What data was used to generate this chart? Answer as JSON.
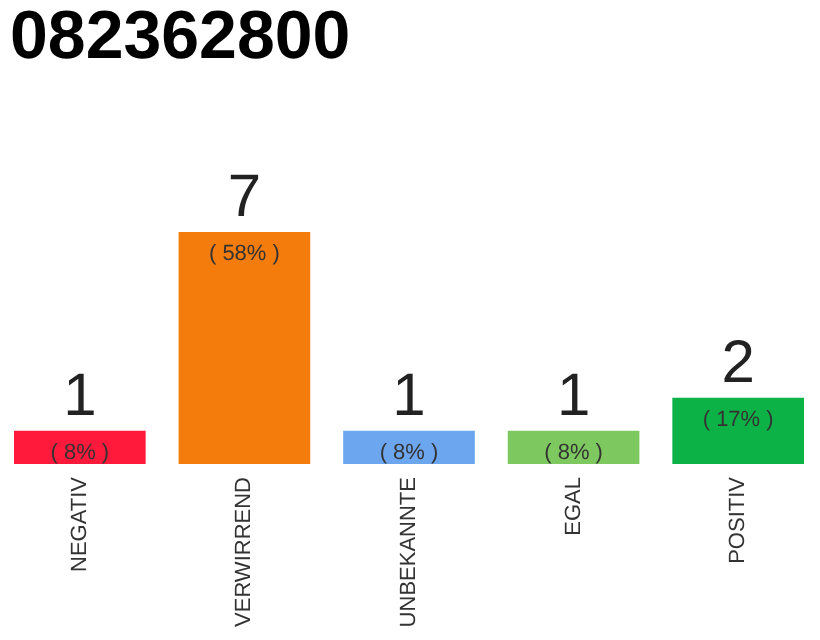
{
  "chart_data": {
    "type": "bar",
    "title": "082362800",
    "categories": [
      "NEGATIV",
      "VERWIRREND",
      "UNBEKANNTE",
      "EGAL",
      "POSITIV"
    ],
    "values": [
      1,
      7,
      1,
      1,
      2
    ],
    "colors": [
      "#ff1a3c",
      "#f47c0c",
      "#6ca6ee",
      "#7ec95f",
      "#0db247"
    ],
    "data_labels": true,
    "annotations": [
      {
        "text": "( 8% )",
        "x": "NEGATIV",
        "y": 1
      },
      {
        "text": "( 58% )",
        "x": "VERWIRREND",
        "y": 7
      },
      {
        "text": "( 8% )",
        "x": "UNBEKANNTE",
        "y": 1
      },
      {
        "text": "( 8% )",
        "x": "EGAL",
        "y": 1
      },
      {
        "text": "( 17% )",
        "x": "POSITIV",
        "y": 2
      }
    ],
    "grid": false,
    "legend": false
  }
}
